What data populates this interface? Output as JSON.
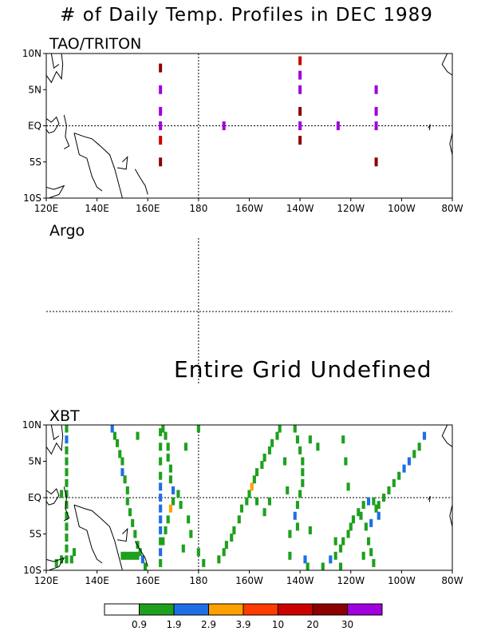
{
  "title": "# of Daily Temp. Profiles in DEC 1989",
  "panels": {
    "tao": {
      "title": "TAO/TRITON"
    },
    "argo": {
      "title": "Argo",
      "message": "Entire Grid Undefined"
    },
    "xbt": {
      "title": "XBT"
    }
  },
  "axes": {
    "x_ticks": [
      "120E",
      "140E",
      "160E",
      "180",
      "160W",
      "140W",
      "120W",
      "100W",
      "80W"
    ],
    "y_ticks": [
      "10N",
      "5N",
      "EQ",
      "5S",
      "10S"
    ]
  },
  "colorbar": {
    "colors": [
      "#ffffff",
      "#1ea01e",
      "#1e6ee6",
      "#ff9f00",
      "#ff3c00",
      "#cd0000",
      "#8c0000",
      "#a000dc"
    ],
    "labels": [
      "0.9",
      "1.9",
      "2.9",
      "3.9",
      "10",
      "20",
      "30"
    ]
  },
  "chart_data": [
    {
      "type": "heatmap",
      "title": "TAO/TRITON",
      "xlim": [
        120,
        280
      ],
      "ylim": [
        -10,
        10
      ],
      "note_units": "x in degrees east (0-360), y in degrees latitude",
      "cells": [
        {
          "lon": 165,
          "lat": 8,
          "level": 6
        },
        {
          "lon": 165,
          "lat": 5,
          "level": 7
        },
        {
          "lon": 165,
          "lat": 2,
          "level": 7
        },
        {
          "lon": 165,
          "lat": 0,
          "level": 7
        },
        {
          "lon": 165,
          "lat": -2,
          "level": 5
        },
        {
          "lon": 165,
          "lat": -5,
          "level": 6
        },
        {
          "lon": 190,
          "lat": 0,
          "level": 7
        },
        {
          "lon": 220,
          "lat": 9,
          "level": 5
        },
        {
          "lon": 220,
          "lat": 7,
          "level": 7
        },
        {
          "lon": 220,
          "lat": 5,
          "level": 7
        },
        {
          "lon": 220,
          "lat": 2,
          "level": 6
        },
        {
          "lon": 220,
          "lat": 0,
          "level": 7
        },
        {
          "lon": 220,
          "lat": -2,
          "level": 6
        },
        {
          "lon": 235,
          "lat": 0,
          "level": 7
        },
        {
          "lon": 250,
          "lat": 5,
          "level": 7
        },
        {
          "lon": 250,
          "lat": 2,
          "level": 7
        },
        {
          "lon": 250,
          "lat": 0,
          "level": 7
        },
        {
          "lon": 250,
          "lat": -5,
          "level": 6
        }
      ]
    },
    {
      "type": "heatmap",
      "title": "Argo",
      "xlim": [
        120,
        280
      ],
      "ylim": [
        -10,
        10
      ],
      "cells": []
    },
    {
      "type": "heatmap",
      "title": "XBT",
      "xlim": [
        120,
        280
      ],
      "ylim": [
        -10,
        10
      ],
      "cells": [
        {
          "lon": 146,
          "lat": 9.5,
          "level": 2
        },
        {
          "lon": 147,
          "lat": 8.5,
          "level": 1
        },
        {
          "lon": 148,
          "lat": 7.5,
          "level": 1
        },
        {
          "lon": 149,
          "lat": 6,
          "level": 1
        },
        {
          "lon": 150,
          "lat": 5,
          "level": 1
        },
        {
          "lon": 150,
          "lat": 3.5,
          "level": 2
        },
        {
          "lon": 151,
          "lat": 2.5,
          "level": 1
        },
        {
          "lon": 152,
          "lat": 1,
          "level": 1
        },
        {
          "lon": 152,
          "lat": -0.5,
          "level": 1
        },
        {
          "lon": 153,
          "lat": -2,
          "level": 1
        },
        {
          "lon": 154,
          "lat": -3.5,
          "level": 1
        },
        {
          "lon": 155,
          "lat": -5,
          "level": 1
        },
        {
          "lon": 156,
          "lat": -6.5,
          "level": 1
        },
        {
          "lon": 157,
          "lat": -7.5,
          "level": 1
        },
        {
          "lon": 158,
          "lat": -8.5,
          "level": 2
        },
        {
          "lon": 159,
          "lat": -9.5,
          "level": 1
        },
        {
          "lon": 128,
          "lat": 9.5,
          "level": 1
        },
        {
          "lon": 128,
          "lat": 8,
          "level": 2
        },
        {
          "lon": 128,
          "lat": 6.5,
          "level": 1
        },
        {
          "lon": 128,
          "lat": 5,
          "level": 1
        },
        {
          "lon": 128,
          "lat": 3.5,
          "level": 1
        },
        {
          "lon": 128,
          "lat": 2,
          "level": 1
        },
        {
          "lon": 128,
          "lat": 0.5,
          "level": 1
        },
        {
          "lon": 128,
          "lat": -1,
          "level": 1
        },
        {
          "lon": 128,
          "lat": -2.5,
          "level": 1
        },
        {
          "lon": 128,
          "lat": -4,
          "level": 1
        },
        {
          "lon": 128,
          "lat": -5.5,
          "level": 1
        },
        {
          "lon": 128,
          "lat": -7,
          "level": 1
        },
        {
          "lon": 128,
          "lat": -8.5,
          "level": 1
        },
        {
          "lon": 126,
          "lat": 0.5,
          "level": 1
        },
        {
          "lon": 126,
          "lat": -8.5,
          "level": 1
        },
        {
          "lon": 124,
          "lat": -9,
          "level": 1
        },
        {
          "lon": 130,
          "lat": -8.5,
          "level": 1
        },
        {
          "lon": 131,
          "lat": -7.5,
          "level": 1
        },
        {
          "lon": 150,
          "lat": -8,
          "level": 1
        },
        {
          "lon": 151,
          "lat": -8,
          "level": 1
        },
        {
          "lon": 152,
          "lat": -8,
          "level": 1
        },
        {
          "lon": 153,
          "lat": -8,
          "level": 1
        },
        {
          "lon": 154,
          "lat": -8,
          "level": 1
        },
        {
          "lon": 155,
          "lat": -8,
          "level": 1
        },
        {
          "lon": 156,
          "lat": -8,
          "level": 1
        },
        {
          "lon": 165,
          "lat": 9,
          "level": 1
        },
        {
          "lon": 165,
          "lat": 7,
          "level": 1
        },
        {
          "lon": 165,
          "lat": 5,
          "level": 1
        },
        {
          "lon": 165,
          "lat": 3,
          "level": 1
        },
        {
          "lon": 165,
          "lat": 1.5,
          "level": 2
        },
        {
          "lon": 165,
          "lat": 0,
          "level": 2
        },
        {
          "lon": 165,
          "lat": -1.5,
          "level": 2
        },
        {
          "lon": 165,
          "lat": -3,
          "level": 2
        },
        {
          "lon": 165,
          "lat": -4.5,
          "level": 2
        },
        {
          "lon": 165,
          "lat": -6,
          "level": 1
        },
        {
          "lon": 165,
          "lat": -7.5,
          "level": 2
        },
        {
          "lon": 165,
          "lat": -9,
          "level": 1
        },
        {
          "lon": 166,
          "lat": 9.5,
          "level": 1
        },
        {
          "lon": 167,
          "lat": 8.5,
          "level": 1
        },
        {
          "lon": 168,
          "lat": 7,
          "level": 1
        },
        {
          "lon": 168,
          "lat": 5.5,
          "level": 1
        },
        {
          "lon": 169,
          "lat": 4,
          "level": 1
        },
        {
          "lon": 169,
          "lat": 2.5,
          "level": 1
        },
        {
          "lon": 170,
          "lat": 1,
          "level": 2
        },
        {
          "lon": 170,
          "lat": -0.5,
          "level": 1
        },
        {
          "lon": 169,
          "lat": -1.5,
          "level": 3
        },
        {
          "lon": 168,
          "lat": -3,
          "level": 1
        },
        {
          "lon": 167,
          "lat": -4.5,
          "level": 1
        },
        {
          "lon": 166,
          "lat": -6,
          "level": 1
        },
        {
          "lon": 172,
          "lat": 0.5,
          "level": 1
        },
        {
          "lon": 173,
          "lat": -1,
          "level": 1
        },
        {
          "lon": 175,
          "lat": 7,
          "level": 1
        },
        {
          "lon": 176,
          "lat": -3,
          "level": 1
        },
        {
          "lon": 177,
          "lat": -5,
          "level": 1
        },
        {
          "lon": 174,
          "lat": -7,
          "level": 1
        },
        {
          "lon": 180,
          "lat": -7.5,
          "level": 1
        },
        {
          "lon": 182,
          "lat": -9,
          "level": 1
        },
        {
          "lon": 180,
          "lat": 9.5,
          "level": 1
        },
        {
          "lon": 156,
          "lat": 8.5,
          "level": 1
        },
        {
          "lon": 188,
          "lat": -8.5,
          "level": 1
        },
        {
          "lon": 190,
          "lat": -7.5,
          "level": 1
        },
        {
          "lon": 191,
          "lat": -6.5,
          "level": 1
        },
        {
          "lon": 193,
          "lat": -5.5,
          "level": 1
        },
        {
          "lon": 194,
          "lat": -4.5,
          "level": 1
        },
        {
          "lon": 196,
          "lat": -3,
          "level": 1
        },
        {
          "lon": 197,
          "lat": -1.5,
          "level": 1
        },
        {
          "lon": 199,
          "lat": -0.5,
          "level": 1
        },
        {
          "lon": 200,
          "lat": 0.5,
          "level": 1
        },
        {
          "lon": 201,
          "lat": 1.5,
          "level": 3
        },
        {
          "lon": 202,
          "lat": 2.5,
          "level": 1
        },
        {
          "lon": 203,
          "lat": 3.5,
          "level": 1
        },
        {
          "lon": 205,
          "lat": 4.5,
          "level": 1
        },
        {
          "lon": 206,
          "lat": 5.5,
          "level": 1
        },
        {
          "lon": 208,
          "lat": 6.5,
          "level": 1
        },
        {
          "lon": 209,
          "lat": 7.5,
          "level": 1
        },
        {
          "lon": 211,
          "lat": 8.5,
          "level": 1
        },
        {
          "lon": 212,
          "lat": 9.5,
          "level": 1
        },
        {
          "lon": 203,
          "lat": -0.5,
          "level": 1
        },
        {
          "lon": 206,
          "lat": -2,
          "level": 1
        },
        {
          "lon": 208,
          "lat": -0.5,
          "level": 1
        },
        {
          "lon": 214,
          "lat": 5,
          "level": 1
        },
        {
          "lon": 215,
          "lat": 1,
          "level": 1
        },
        {
          "lon": 216,
          "lat": -5,
          "level": 1
        },
        {
          "lon": 216,
          "lat": -8,
          "level": 1
        },
        {
          "lon": 218,
          "lat": 9.5,
          "level": 1
        },
        {
          "lon": 219,
          "lat": 8,
          "level": 1
        },
        {
          "lon": 220,
          "lat": 6.5,
          "level": 1
        },
        {
          "lon": 221,
          "lat": 5,
          "level": 1
        },
        {
          "lon": 221,
          "lat": 3.5,
          "level": 1
        },
        {
          "lon": 221,
          "lat": 2,
          "level": 1
        },
        {
          "lon": 220,
          "lat": 0.5,
          "level": 1
        },
        {
          "lon": 219,
          "lat": -1,
          "level": 1
        },
        {
          "lon": 218,
          "lat": -2.5,
          "level": 2
        },
        {
          "lon": 219,
          "lat": -4,
          "level": 1
        },
        {
          "lon": 224,
          "lat": 8,
          "level": 1
        },
        {
          "lon": 222,
          "lat": -8.5,
          "level": 2
        },
        {
          "lon": 223,
          "lat": -9.5,
          "level": 1
        },
        {
          "lon": 224,
          "lat": -4.5,
          "level": 1
        },
        {
          "lon": 227,
          "lat": 7,
          "level": 1
        },
        {
          "lon": 229,
          "lat": -9.5,
          "level": 1
        },
        {
          "lon": 232,
          "lat": -8.5,
          "level": 2
        },
        {
          "lon": 234,
          "lat": -8,
          "level": 1
        },
        {
          "lon": 236,
          "lat": -7,
          "level": 1
        },
        {
          "lon": 237,
          "lat": -6,
          "level": 1
        },
        {
          "lon": 239,
          "lat": -5,
          "level": 1
        },
        {
          "lon": 240,
          "lat": -4,
          "level": 1
        },
        {
          "lon": 241,
          "lat": -3,
          "level": 1
        },
        {
          "lon": 243,
          "lat": -2,
          "level": 1
        },
        {
          "lon": 245,
          "lat": -1,
          "level": 1
        },
        {
          "lon": 247,
          "lat": -0.5,
          "level": 2
        },
        {
          "lon": 249,
          "lat": -0.5,
          "level": 1
        },
        {
          "lon": 251,
          "lat": -1,
          "level": 1
        },
        {
          "lon": 253,
          "lat": 0,
          "level": 1
        },
        {
          "lon": 255,
          "lat": 1,
          "level": 1
        },
        {
          "lon": 257,
          "lat": 2,
          "level": 1
        },
        {
          "lon": 259,
          "lat": 3,
          "level": 1
        },
        {
          "lon": 261,
          "lat": 4,
          "level": 2
        },
        {
          "lon": 263,
          "lat": 5,
          "level": 2
        },
        {
          "lon": 265,
          "lat": 6,
          "level": 1
        },
        {
          "lon": 267,
          "lat": 7,
          "level": 1
        },
        {
          "lon": 269,
          "lat": 8.5,
          "level": 2
        },
        {
          "lon": 244,
          "lat": -2.5,
          "level": 1
        },
        {
          "lon": 246,
          "lat": -4,
          "level": 1
        },
        {
          "lon": 247,
          "lat": -6,
          "level": 1
        },
        {
          "lon": 245,
          "lat": -8,
          "level": 1
        },
        {
          "lon": 248,
          "lat": -7.5,
          "level": 1
        },
        {
          "lon": 249,
          "lat": -9,
          "level": 1
        },
        {
          "lon": 250,
          "lat": -1.5,
          "level": 1
        },
        {
          "lon": 251,
          "lat": -2.5,
          "level": 2
        },
        {
          "lon": 248,
          "lat": -3.5,
          "level": 2
        },
        {
          "lon": 237,
          "lat": 8,
          "level": 1
        },
        {
          "lon": 238,
          "lat": 5,
          "level": 1
        },
        {
          "lon": 239,
          "lat": 1.5,
          "level": 1
        },
        {
          "lon": 236,
          "lat": -9.5,
          "level": 1
        },
        {
          "lon": 234,
          "lat": -6,
          "level": 1
        }
      ]
    }
  ]
}
